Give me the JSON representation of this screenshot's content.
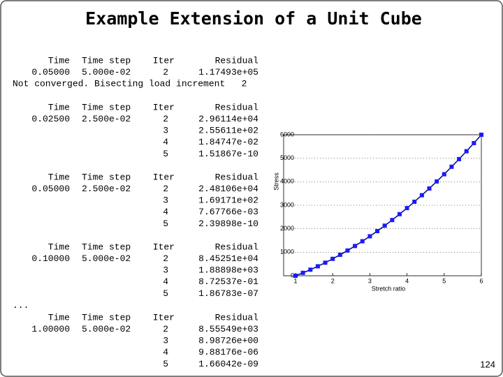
{
  "title": "Example Extension of a Unit Cube",
  "blocks": [
    {
      "header": [
        "Time",
        "Time step",
        "Iter",
        "Residual"
      ],
      "rows": [
        {
          "time": "0.05000",
          "step": "5.000e-02",
          "iter": "2",
          "residual": "1.17493e+05"
        }
      ],
      "note": "Not converged. Bisecting load increment   2"
    },
    {
      "header": [
        "Time",
        "Time step",
        "Iter",
        "Residual"
      ],
      "rows": [
        {
          "time": "0.02500",
          "step": "2.500e-02",
          "iter": "2",
          "residual": "2.96114e+04"
        },
        {
          "iter": "3",
          "residual": "2.55611e+02"
        },
        {
          "iter": "4",
          "residual": "1.84747e-02"
        },
        {
          "iter": "5",
          "residual": "1.51867e-10"
        }
      ]
    },
    {
      "header": [
        "Time",
        "Time step",
        "Iter",
        "Residual"
      ],
      "rows": [
        {
          "time": "0.05000",
          "step": "2.500e-02",
          "iter": "2",
          "residual": "2.48106e+04"
        },
        {
          "iter": "3",
          "residual": "1.69171e+02"
        },
        {
          "iter": "4",
          "residual": "7.67766e-03"
        },
        {
          "iter": "5",
          "residual": "2.39898e-10"
        }
      ]
    },
    {
      "header": [
        "Time",
        "Time step",
        "Iter",
        "Residual"
      ],
      "rows": [
        {
          "time": "0.10000",
          "step": "5.000e-02",
          "iter": "2",
          "residual": "8.45251e+04"
        },
        {
          "iter": "3",
          "residual": "1.88898e+03"
        },
        {
          "iter": "4",
          "residual": "8.72537e-01"
        },
        {
          "iter": "5",
          "residual": "1.86783e-07"
        }
      ],
      "note": "..."
    },
    {
      "header": [
        "Time",
        "Time step",
        "Iter",
        "Residual"
      ],
      "rows": [
        {
          "time": "1.00000",
          "step": "5.000e-02",
          "iter": "2",
          "residual": "8.55549e+03"
        },
        {
          "iter": "3",
          "residual": "8.98726e+00"
        },
        {
          "iter": "4",
          "residual": "9.88176e-06"
        },
        {
          "iter": "5",
          "residual": "1.66042e-09"
        }
      ]
    }
  ],
  "page_number": "124",
  "chart_data": {
    "type": "line",
    "xlabel": "Stretch ratio",
    "ylabel": "Stress",
    "x": [
      1,
      1.2,
      1.4,
      1.6,
      1.8,
      2,
      2.2,
      2.4,
      2.6,
      2.8,
      3,
      3.2,
      3.4,
      3.6,
      3.8,
      4,
      4.2,
      4.4,
      4.6,
      4.8,
      5,
      5.2,
      5.4,
      5.6,
      5.8,
      6
    ],
    "values": [
      0,
      125,
      259,
      403,
      557,
      720,
      893,
      1075,
      1267,
      1469,
      1680,
      1901,
      2131,
      2371,
      2621,
      2880,
      3149,
      3427,
      3715,
      4013,
      4320,
      4637,
      4963,
      5299,
      5645,
      6000
    ],
    "color": "#1a1aff",
    "xlim": [
      1,
      6
    ],
    "ylim": [
      0,
      6000
    ],
    "xticks": [
      1,
      2,
      3,
      4,
      5,
      6
    ],
    "yticks": [
      0,
      1000,
      2000,
      3000,
      4000,
      5000,
      6000
    ],
    "grid": true
  }
}
